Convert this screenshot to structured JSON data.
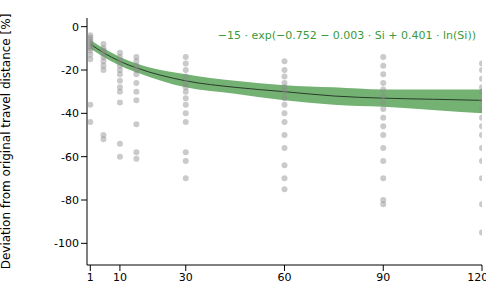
{
  "chart_data": {
    "type": "scatter",
    "y_label": "Deviation from original travel distance [%]",
    "annotation": "−15 · exp(−0.752 − 0.003 · Si + 0.401 · ln(Si))",
    "annotation_color": "#3a9a3a",
    "xlim": [
      0,
      120
    ],
    "xticks": [
      1,
      10,
      30,
      60,
      90,
      120
    ],
    "ylim": [
      -110,
      4
    ],
    "yticks": [
      -100,
      -80,
      -60,
      -40,
      -20,
      0
    ],
    "grid": false,
    "points": {
      "color": "#8a8a8a",
      "marker": "circle",
      "x": [
        1,
        1,
        1,
        1,
        1,
        1,
        1,
        1,
        1,
        1,
        1,
        1,
        5,
        5,
        5,
        5,
        5,
        5,
        5,
        5,
        5,
        5,
        10,
        10,
        10,
        10,
        10,
        10,
        10,
        10,
        10,
        10,
        10,
        10,
        15,
        15,
        15,
        15,
        15,
        15,
        15,
        15,
        15,
        15,
        15,
        30,
        30,
        30,
        30,
        30,
        30,
        30,
        30,
        30,
        30,
        30,
        30,
        30,
        30,
        60,
        60,
        60,
        60,
        60,
        60,
        60,
        60,
        60,
        60,
        60,
        60,
        60,
        60,
        60,
        90,
        90,
        90,
        90,
        90,
        90,
        90,
        90,
        90,
        90,
        90,
        90,
        90,
        90,
        90,
        90,
        120,
        120,
        120,
        120,
        120,
        120,
        120,
        120,
        120,
        120,
        120,
        120,
        120,
        120,
        120
      ],
      "y": [
        -4,
        -5,
        -6,
        -7,
        -8,
        -9,
        -10,
        -11,
        -13,
        -15,
        -36,
        -44,
        -8,
        -10,
        -11,
        -12,
        -14,
        -16,
        -18,
        -20,
        -50,
        -52,
        -12,
        -14,
        -16,
        -18,
        -20,
        -22,
        -25,
        -28,
        -30,
        -35,
        -54,
        -60,
        -14,
        -16,
        -18,
        -20,
        -22,
        -26,
        -30,
        -34,
        -45,
        -58,
        -61,
        -14,
        -17,
        -20,
        -23,
        -26,
        -28,
        -30,
        -33,
        -36,
        -40,
        -44,
        -58,
        -62,
        -70,
        -16,
        -20,
        -23,
        -26,
        -28,
        -30,
        -33,
        -36,
        -40,
        -44,
        -50,
        -56,
        -64,
        -70,
        -75,
        -14,
        -18,
        -22,
        -26,
        -29,
        -32,
        -35,
        -38,
        -42,
        -46,
        -50,
        -56,
        -62,
        -70,
        -80,
        -82,
        -17,
        -20,
        -24,
        -28,
        -30,
        -34,
        -38,
        -42,
        -46,
        -50,
        -56,
        -62,
        -70,
        -82,
        -95
      ]
    },
    "fit": {
      "color": "#2b3b2b",
      "line_style": "solid",
      "x": [
        1,
        5,
        10,
        15,
        30,
        45,
        60,
        75,
        90,
        105,
        120
      ],
      "y": [
        -8,
        -12,
        -16,
        -19,
        -25,
        -28,
        -30,
        -32,
        -33,
        -33.5,
        -34
      ]
    },
    "band": {
      "color": "#5aa55a",
      "x": [
        1,
        5,
        10,
        15,
        30,
        45,
        60,
        75,
        90,
        105,
        120
      ],
      "lower": [
        -10,
        -14,
        -18,
        -21,
        -28,
        -31,
        -34,
        -36,
        -37,
        -38.5,
        -40
      ],
      "upper": [
        -6,
        -10,
        -14,
        -17,
        -22,
        -25,
        -27,
        -28,
        -29,
        -29,
        -29
      ]
    }
  }
}
